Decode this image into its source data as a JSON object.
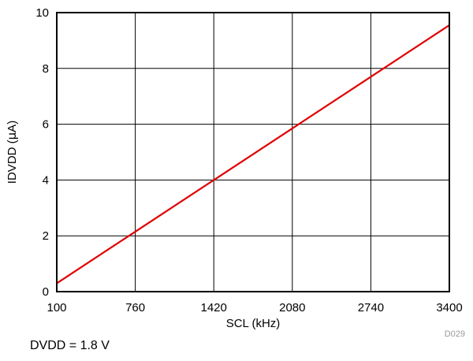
{
  "chart_data": {
    "type": "line",
    "xlabel": "SCL (kHz)",
    "ylabel_prefix": "IDVDD (",
    "ylabel_unit_symbol": "μ",
    "ylabel_suffix": "A)",
    "xlim": [
      100,
      3400
    ],
    "ylim": [
      0,
      10
    ],
    "x_ticks": [
      100,
      760,
      1420,
      2080,
      2740,
      3400
    ],
    "y_ticks": [
      0,
      2,
      4,
      6,
      8,
      10
    ],
    "grid": true,
    "series": [
      {
        "color": "#e00000",
        "x": [
          100,
          760,
          1420,
          2080,
          2740,
          3400
        ],
        "y": [
          0.3,
          2.15,
          4.0,
          5.85,
          7.7,
          9.55
        ]
      }
    ]
  },
  "figure_id": "D029",
  "note": "DVDD = 1.8 V"
}
